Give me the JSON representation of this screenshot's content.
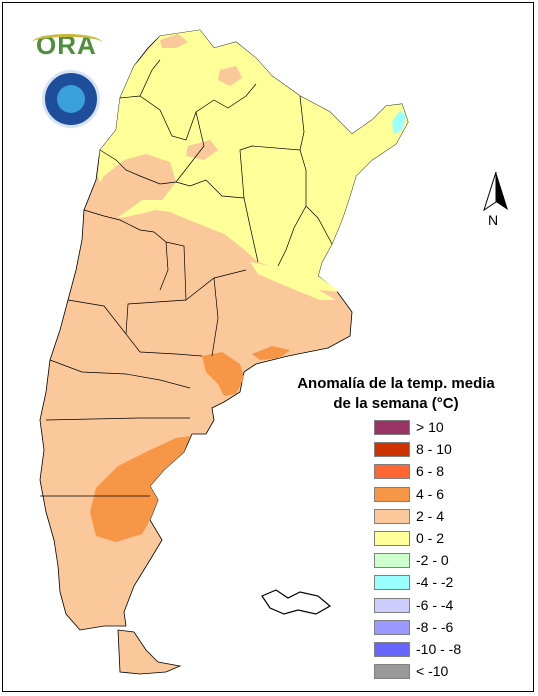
{
  "map": {
    "title_line1": "Anomalía de la temp. media",
    "title_line2": "de la semana (°C)",
    "north_label": "N",
    "colors": {
      "warm_4_6": "#F79646",
      "warm_2_4": "#FAC89A",
      "warm_0_2": "#FFFF99",
      "cool_m2_0": "#CCFFCC",
      "cool_m4_m2": "#99FFFF"
    },
    "legend": [
      {
        "label": "> 10",
        "color": "#993366"
      },
      {
        "label": "8 - 10",
        "color": "#CC3300"
      },
      {
        "label": "6 - 8",
        "color": "#FF6633"
      },
      {
        "label": "4 - 6",
        "color": "#F79646"
      },
      {
        "label": "2 - 4",
        "color": "#FAC89A"
      },
      {
        "label": "0 - 2",
        "color": "#FFFF99"
      },
      {
        "label": "-2 - 0",
        "color": "#CCFFCC"
      },
      {
        "label": "-4 - -2",
        "color": "#99FFFF"
      },
      {
        "label": "-6 - -4",
        "color": "#CCCCFF"
      },
      {
        "label": "-8 - -6",
        "color": "#9999FF"
      },
      {
        "label": "-10 - -8",
        "color": "#6666FF"
      },
      {
        "label": "< -10",
        "color": "#999999"
      }
    ]
  },
  "logos": {
    "ora_text": "ORA",
    "smn_icon": "smn-logo"
  }
}
